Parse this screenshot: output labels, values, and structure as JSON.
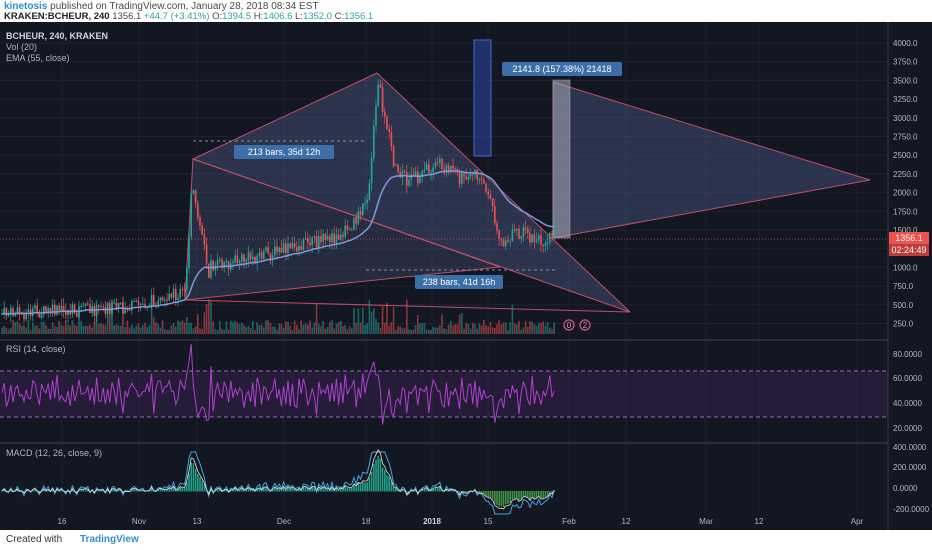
{
  "header": {
    "user": "kinetosis",
    "published": "published on TradingView.com, January 28, 2018 08:34 EST",
    "symbol": "KRAKEN:BCHEUR, 240",
    "last": "1356.1",
    "change": "+44.7 (+3.41%)",
    "o_label": "O:",
    "o_value": "1394.5",
    "h_label": "H:",
    "h_value": "1406.6",
    "l_label": "L:",
    "l_value": "1352.0",
    "c_label": "C:",
    "c_value": "1356.1"
  },
  "legend": {
    "title": "BCHEUR, 240, KRAKEN",
    "vol": "Vol (20)",
    "ema": "EMA (55, close)",
    "rsi": "RSI (14, close)",
    "macd": "MACD (12, 26, close, 9)"
  },
  "annotations": {
    "bars1": "213 bars, 35d 12h",
    "bars2": "238 bars, 41d 16h",
    "measure": "2141.8 (157.38%) 21418"
  },
  "price_axis": [
    "4000.0",
    "3750.0",
    "3500.0",
    "3250.0",
    "3000.0",
    "2750.0",
    "2500.0",
    "2250.0",
    "2000.0",
    "1750.0",
    "1500.0",
    "1250.0",
    "1000.0",
    "750.0",
    "500.0",
    "250.0"
  ],
  "price_badge": "1356.1",
  "countdown": "02:24:49",
  "rsi_axis": [
    "80.0000",
    "60.0000",
    "40.0000",
    "20.0000"
  ],
  "macd_axis": [
    "400.0000",
    "200.0000",
    "0.0000",
    "-200.0000"
  ],
  "time_axis": [
    "16",
    "Nov",
    "13",
    "Dec",
    "18",
    "2018",
    "15",
    "Feb",
    "12",
    "Mar",
    "12",
    "Apr"
  ],
  "events": [
    "0",
    "2"
  ],
  "footer": {
    "created": "Created with",
    "brand": "TradingView"
  },
  "colors": {
    "background": "#131722",
    "candle_up": "#26a69a",
    "candle_down": "#ef5350",
    "ema": "#7e9ad8",
    "rsi": "#b040d0",
    "macd": "#4aa3df",
    "signal": "#e0e0e0",
    "triangle": "#4a5a8a",
    "accent": "#2f8fce"
  }
}
